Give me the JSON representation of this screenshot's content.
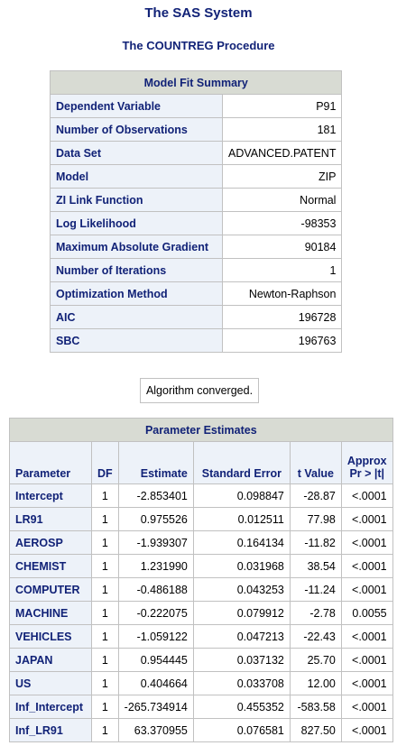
{
  "header": {
    "system_title": "The SAS System",
    "procedure_title": "The COUNTREG Procedure"
  },
  "model_fit": {
    "title": "Model Fit Summary",
    "rows": [
      {
        "label": "Dependent Variable",
        "value": "P91"
      },
      {
        "label": "Number of Observations",
        "value": "181"
      },
      {
        "label": "Data Set",
        "value": "ADVANCED.PATENT"
      },
      {
        "label": "Model",
        "value": "ZIP"
      },
      {
        "label": "ZI Link Function",
        "value": "Normal"
      },
      {
        "label": "Log Likelihood",
        "value": "-98353"
      },
      {
        "label": "Maximum Absolute Gradient",
        "value": "90184"
      },
      {
        "label": "Number of Iterations",
        "value": "1"
      },
      {
        "label": "Optimization Method",
        "value": "Newton-Raphson"
      },
      {
        "label": "AIC",
        "value": "196728"
      },
      {
        "label": "SBC",
        "value": "196763"
      }
    ]
  },
  "convergence_note": "Algorithm converged.",
  "parameter_estimates": {
    "title": "Parameter Estimates",
    "columns": {
      "parameter": "Parameter",
      "df": "DF",
      "estimate": "Estimate",
      "std_error": "Standard Error",
      "t_value": "t Value",
      "p_line1": "Approx",
      "p_line2": "Pr > |t|"
    },
    "rows": [
      {
        "parameter": "Intercept",
        "df": "1",
        "estimate": "-2.853401",
        "std_error": "0.098847",
        "t_value": "-28.87",
        "p": "<.0001"
      },
      {
        "parameter": "LR91",
        "df": "1",
        "estimate": "0.975526",
        "std_error": "0.012511",
        "t_value": "77.98",
        "p": "<.0001"
      },
      {
        "parameter": "AEROSP",
        "df": "1",
        "estimate": "-1.939307",
        "std_error": "0.164134",
        "t_value": "-11.82",
        "p": "<.0001"
      },
      {
        "parameter": "CHEMIST",
        "df": "1",
        "estimate": "1.231990",
        "std_error": "0.031968",
        "t_value": "38.54",
        "p": "<.0001"
      },
      {
        "parameter": "COMPUTER",
        "df": "1",
        "estimate": "-0.486188",
        "std_error": "0.043253",
        "t_value": "-11.24",
        "p": "<.0001"
      },
      {
        "parameter": "MACHINE",
        "df": "1",
        "estimate": "-0.222075",
        "std_error": "0.079912",
        "t_value": "-2.78",
        "p": "0.0055"
      },
      {
        "parameter": "VEHICLES",
        "df": "1",
        "estimate": "-1.059122",
        "std_error": "0.047213",
        "t_value": "-22.43",
        "p": "<.0001"
      },
      {
        "parameter": "JAPAN",
        "df": "1",
        "estimate": "0.954445",
        "std_error": "0.037132",
        "t_value": "25.70",
        "p": "<.0001"
      },
      {
        "parameter": "US",
        "df": "1",
        "estimate": "0.404664",
        "std_error": "0.033708",
        "t_value": "12.00",
        "p": "<.0001"
      },
      {
        "parameter": "Inf_Intercept",
        "df": "1",
        "estimate": "-265.734914",
        "std_error": "0.455352",
        "t_value": "-583.58",
        "p": "<.0001"
      },
      {
        "parameter": "Inf_LR91",
        "df": "1",
        "estimate": "63.370955",
        "std_error": "0.076581",
        "t_value": "827.50",
        "p": "<.0001"
      }
    ]
  }
}
